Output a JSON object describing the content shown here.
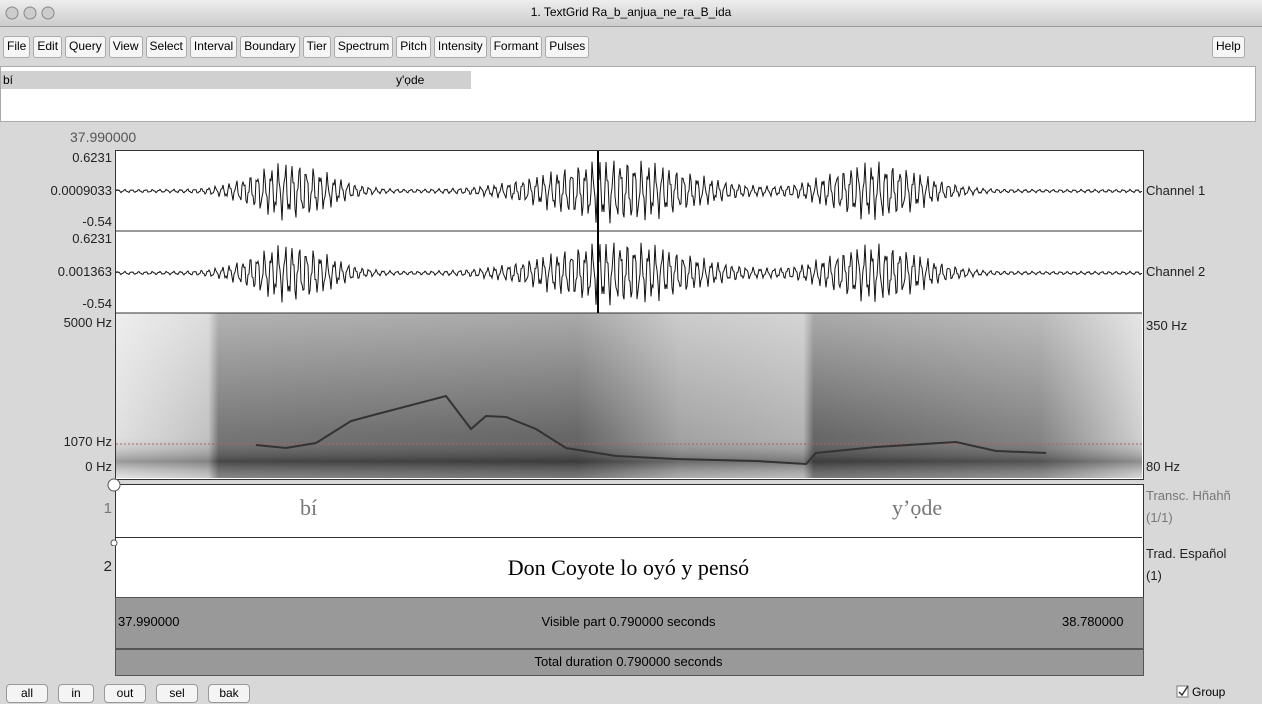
{
  "window": {
    "title": "1. TextGrid Ra_b_anjua_ne_ra_B_ida"
  },
  "menu": {
    "items": [
      "File",
      "Edit",
      "Query",
      "View",
      "Select",
      "Interval",
      "Boundary",
      "Tier",
      "Spectrum",
      "Pitch",
      "Intensity",
      "Formant",
      "Pulses"
    ],
    "help": "Help"
  },
  "text_box": [
    "bí",
    "y'ọde"
  ],
  "cursor_time": "37.990000",
  "channels": [
    {
      "max": "0.6231",
      "mid": "0.0009033",
      "min": "-0.54",
      "name": "Channel 1"
    },
    {
      "max": "0.6231",
      "mid": "0.001363",
      "min": "-0.54",
      "name": "Channel 2"
    }
  ],
  "spectrogram": {
    "top": "5000 Hz",
    "mid": "1070 Hz",
    "bottom": "0 Hz",
    "pitch_top": "350 Hz",
    "pitch_bottom": "80 Hz"
  },
  "tiers": [
    {
      "number": "1",
      "intervals": [
        "bí",
        "y’ọde"
      ],
      "name": "Transc. Hñahñ",
      "count": "(1/1)"
    },
    {
      "number": "2",
      "intervals": [
        "Don Coyote lo oyó y pensó"
      ],
      "name": "Trad. Español",
      "count": "(1)"
    }
  ],
  "bottom": {
    "start": "37.990000",
    "visible": "Visible part 0.790000 seconds",
    "end": "38.780000",
    "total": "Total duration 0.790000 seconds"
  },
  "buttons": [
    "all",
    "in",
    "out",
    "sel",
    "bak"
  ],
  "group": "Group"
}
